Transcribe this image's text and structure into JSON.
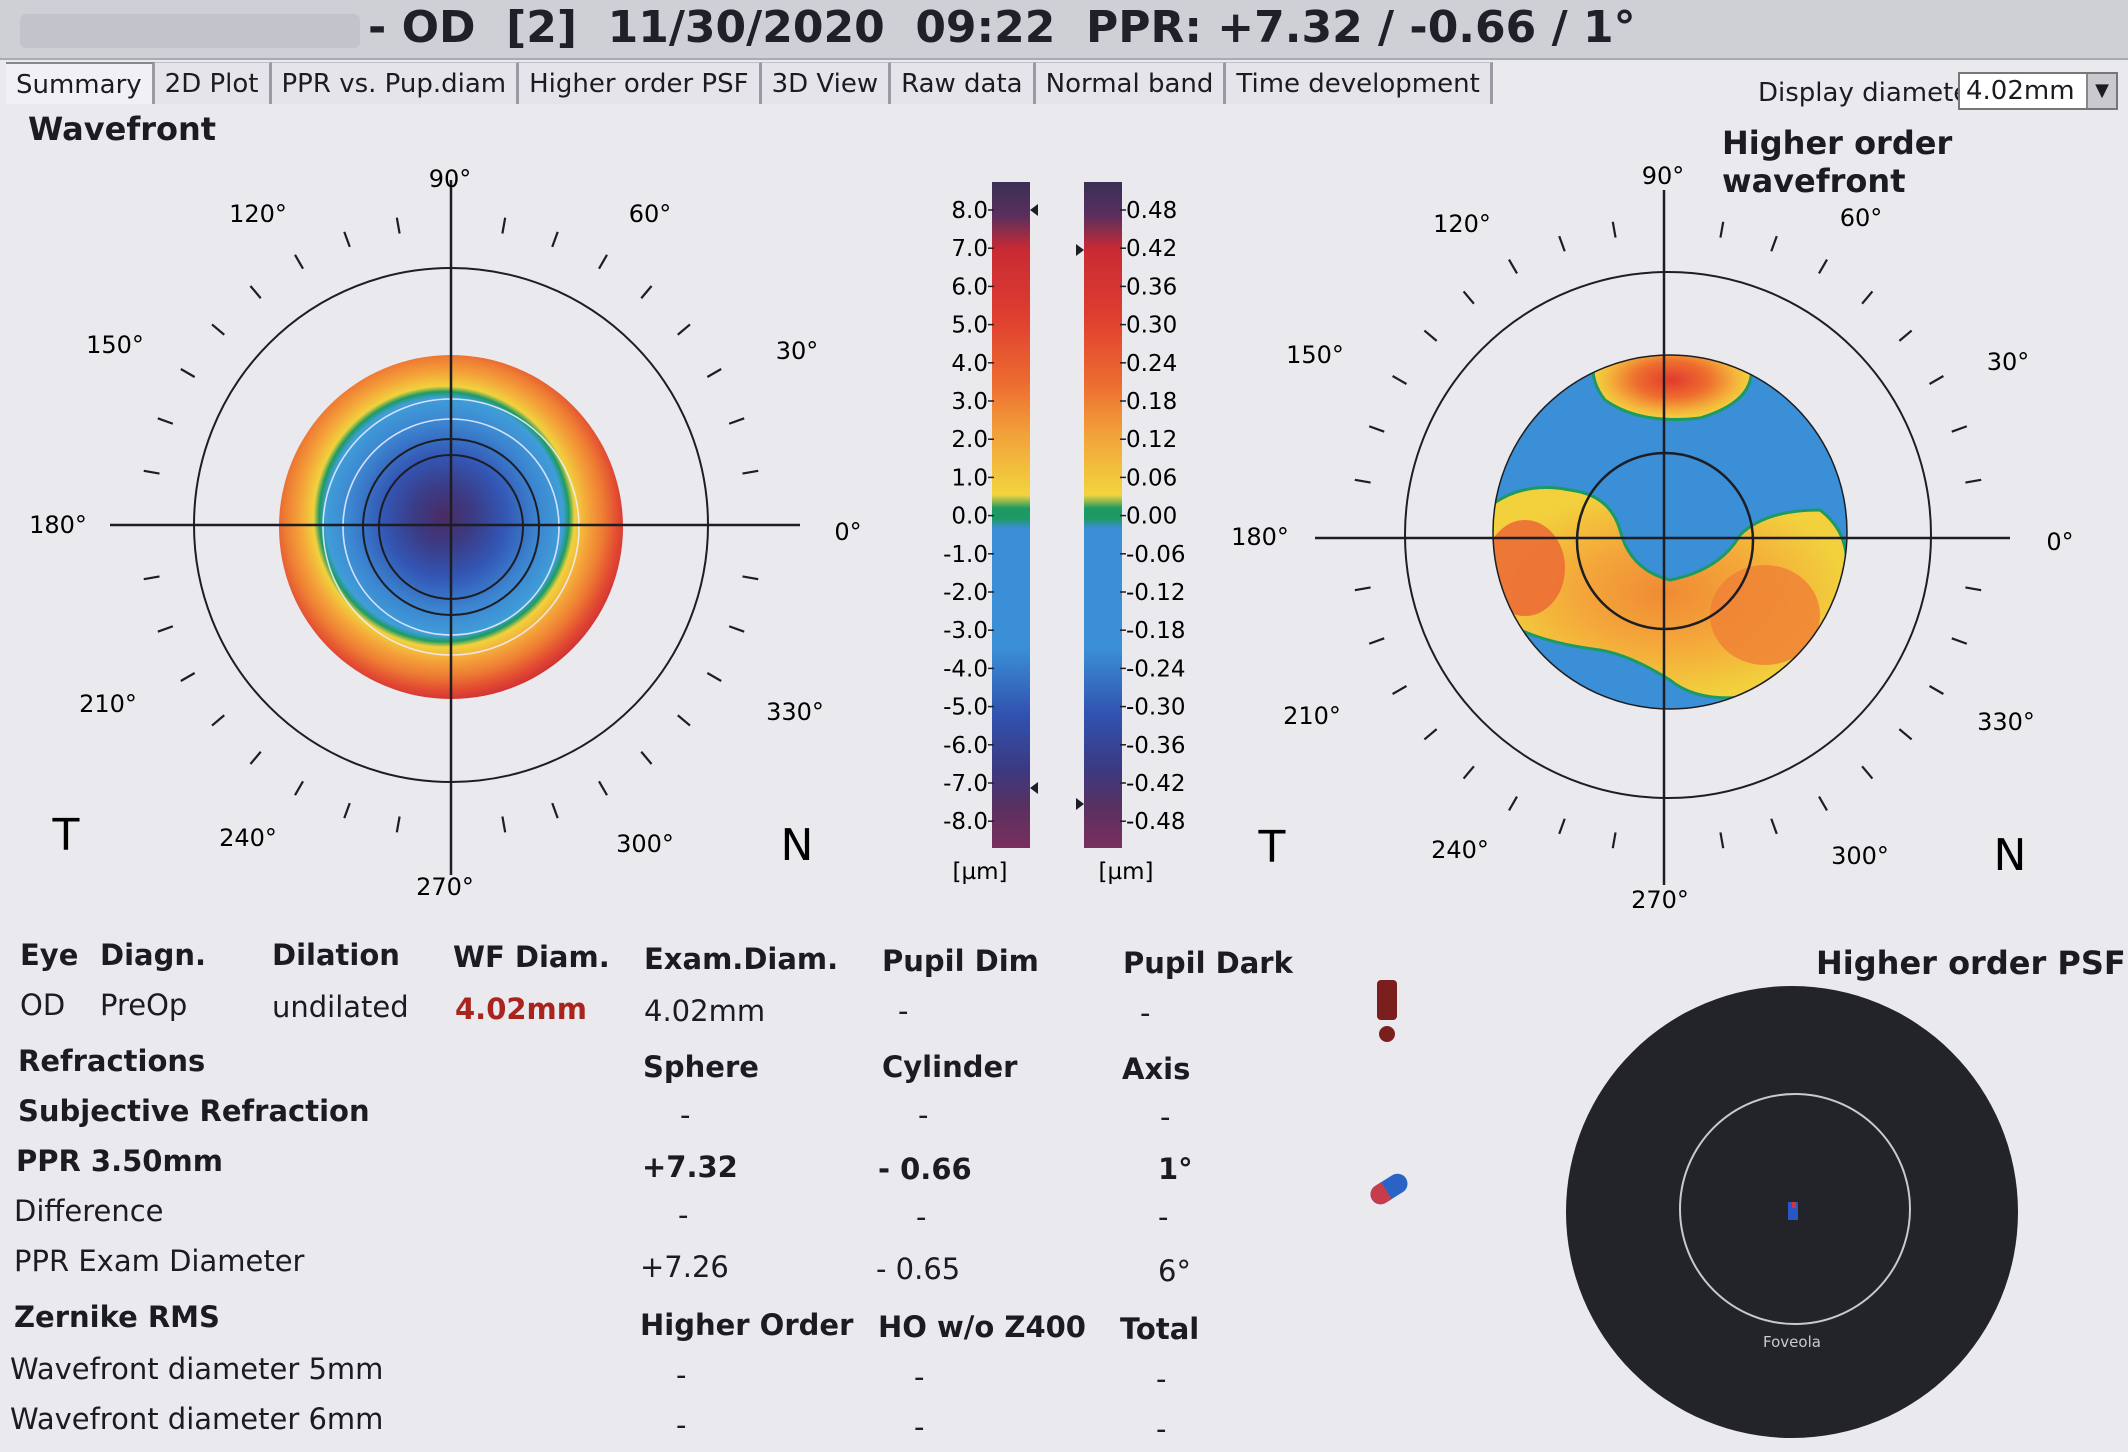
{
  "header": {
    "title": "- OD  [2]  11/30/2020  09:22  PPR: +7.32 / -0.66 / 1°"
  },
  "tabs": [
    {
      "label": "Summary",
      "active": true
    },
    {
      "label": "2D Plot"
    },
    {
      "label": "PPR vs. Pup.diam"
    },
    {
      "label": "Higher order PSF"
    },
    {
      "label": "3D View"
    },
    {
      "label": "Raw data"
    },
    {
      "label": "Normal band"
    },
    {
      "label": "Time development"
    }
  ],
  "display_diameter": {
    "label": "Display diameter",
    "value": "4.02mm"
  },
  "wavefront": {
    "title": "Wavefront",
    "angle_labels": [
      "90°",
      "60°",
      "30°",
      "0°",
      "330°",
      "300°",
      "270°",
      "240°",
      "210°",
      "180°",
      "150°",
      "120°"
    ],
    "left_letter": "T",
    "right_letter": "N"
  },
  "ho_wavefront": {
    "title": "Higher order wavefront",
    "angle_labels": [
      "90°",
      "60°",
      "30°",
      "0°",
      "330°",
      "300°",
      "270°",
      "240°",
      "210°",
      "180°",
      "150°",
      "120°"
    ],
    "left_letter": "T",
    "right_letter": "N"
  },
  "scale_left": {
    "ticks": [
      "8.0",
      "7.0",
      "6.0",
      "5.0",
      "4.0",
      "3.0",
      "2.0",
      "1.0",
      "0.0",
      "-1.0",
      "-2.0",
      "-3.0",
      "-4.0",
      "-5.0",
      "-6.0",
      "-7.0",
      "-8.0"
    ],
    "unit": "[µm]"
  },
  "scale_right": {
    "ticks": [
      "0.48",
      "0.42",
      "0.36",
      "0.30",
      "0.24",
      "0.18",
      "0.12",
      "0.06",
      "0.00",
      "-0.06",
      "-0.12",
      "-0.18",
      "-0.24",
      "-0.30",
      "-0.36",
      "-0.42",
      "-0.48"
    ],
    "unit": "[µm]"
  },
  "exam": {
    "headers": [
      "Eye",
      "Diagn.",
      "Dilation",
      "WF Diam.",
      "Exam.Diam.",
      "Pupil Dim",
      "Pupil Dark"
    ],
    "values": [
      "OD",
      "PreOp",
      "undilated",
      "4.02mm",
      "4.02mm",
      "-",
      "-"
    ]
  },
  "refractions": {
    "title": "Refractions",
    "headers": [
      "Sphere",
      "Cylinder",
      "Axis"
    ],
    "rows": [
      {
        "label": "Subjective Refraction",
        "sphere": "-",
        "cylinder": "-",
        "axis": "-"
      },
      {
        "label": "PPR  3.50mm",
        "sphere": "+7.32",
        "cylinder": "- 0.66",
        "axis": "1°"
      },
      {
        "label": "Difference",
        "sphere": "-",
        "cylinder": "-",
        "axis": "-"
      },
      {
        "label": "PPR Exam Diameter",
        "sphere": "+7.26",
        "cylinder": "- 0.65",
        "axis": "6°"
      }
    ]
  },
  "zernike": {
    "title": "Zernike RMS",
    "headers": [
      "Higher Order",
      "HO w/o Z400",
      "Total"
    ],
    "rows": [
      {
        "label": "Wavefront diameter 5mm",
        "ho": "-",
        "ho_wo": "-",
        "total": "-"
      },
      {
        "label": "Wavefront diameter 6mm",
        "ho": "-",
        "ho_wo": "-",
        "total": "-"
      }
    ]
  },
  "psf": {
    "title": "Higher order PSF",
    "caption": "Foveola"
  },
  "icons": {
    "warning": "exclamation-icon",
    "pill": "capsule-icon"
  },
  "colors": {
    "background": "#e9e9ee",
    "warning": "#7b1e1e",
    "pill_blue": "#2a63c6",
    "pill_red": "#c73c4a"
  }
}
